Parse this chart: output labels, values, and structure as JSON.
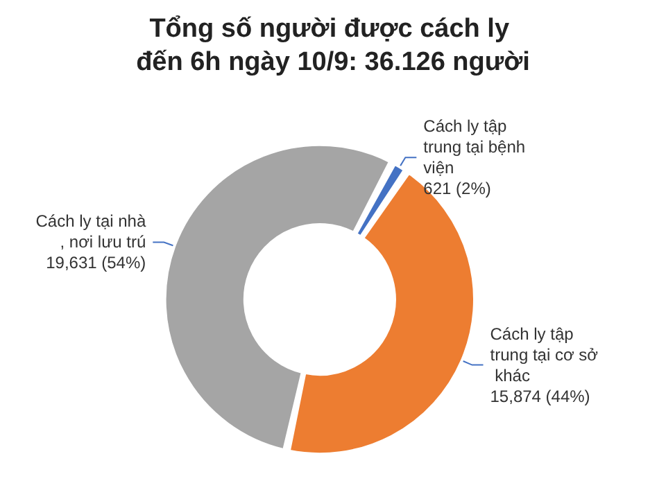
{
  "chart_data": {
    "type": "donut",
    "title": "Tổng số người được cách ly đến 6h ngày 10/9: 36.126 người",
    "categories": [
      "Cách ly tập trung tại bệnh viện",
      "Cách ly tập trung tại cơ sở khác",
      "Cách ly tại nhà, nơi lưu trú"
    ],
    "values": [
      621,
      15874,
      19631
    ],
    "value_labels": [
      "621 (2%)",
      "15,874 (44%)",
      "19,631 (54%)"
    ],
    "colors": [
      "#4472c4",
      "#ed7d31",
      "#a5a5a5"
    ],
    "legend": false
  }
}
